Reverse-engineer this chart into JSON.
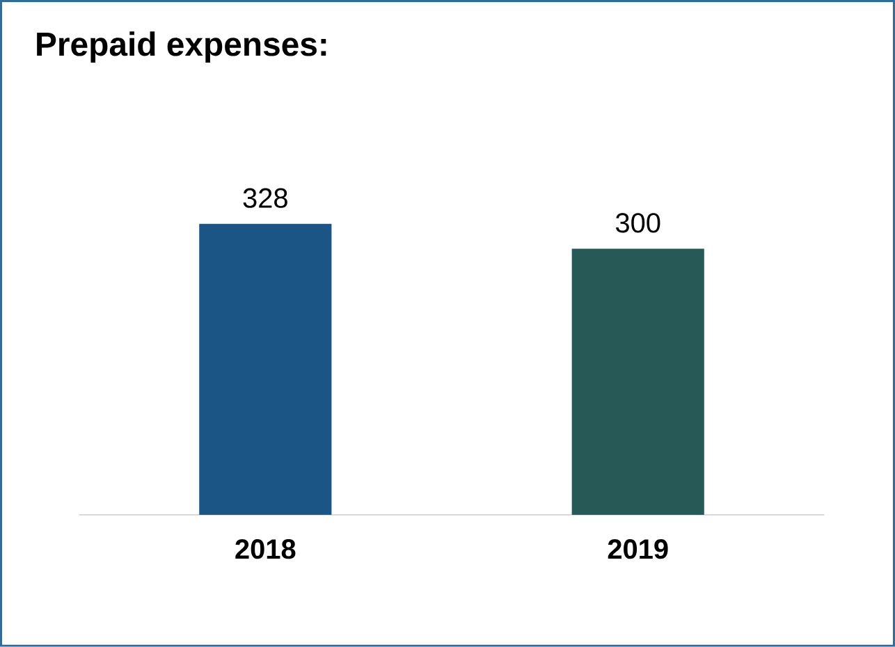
{
  "chart_data": {
    "type": "bar",
    "title": "Prepaid expenses:",
    "categories": [
      "2018",
      "2019"
    ],
    "values": [
      328,
      300
    ],
    "colors": [
      "#1a5585",
      "#275a56"
    ],
    "data_labels": true
  }
}
